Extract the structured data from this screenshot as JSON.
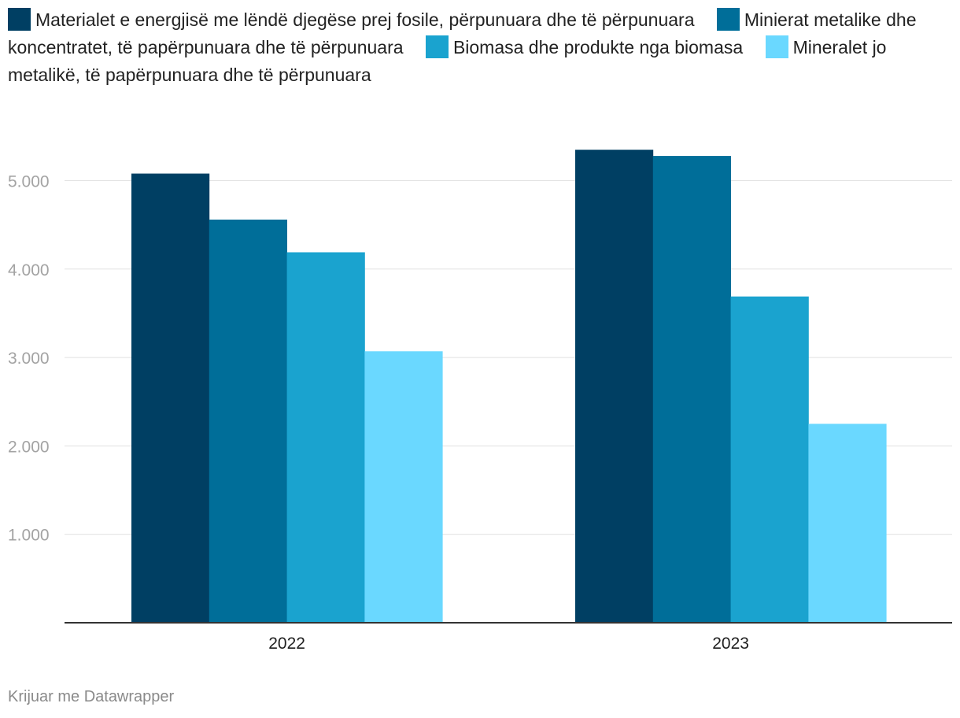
{
  "chart_data": {
    "type": "bar",
    "categories": [
      "2022",
      "2023"
    ],
    "series": [
      {
        "name": "Materialet e energjisë me lëndë djegëse prej fosile, përpunuara dhe të përpunuara",
        "color": "#003f63",
        "values": [
          5080,
          5350
        ]
      },
      {
        "name": "Minierat metalike dhe koncentratet, të papërpunuara dhe të përpunuara",
        "color": "#006e99",
        "values": [
          4560,
          5280
        ]
      },
      {
        "name": "Biomasa dhe produkte nga biomasa",
        "color": "#1aa3cf",
        "values": [
          4190,
          3690
        ]
      },
      {
        "name": "Mineralet jo metalikë, të papërpunuara dhe të përpunuara",
        "color": "#6ad8ff",
        "values": [
          3070,
          2250
        ]
      }
    ],
    "y_ticks": [
      1000,
      2000,
      3000,
      4000,
      5000
    ],
    "y_tick_labels": [
      "1.000",
      "2.000",
      "3.000",
      "4.000",
      "5.000"
    ],
    "ylim": [
      0,
      5500
    ],
    "xlabel": "",
    "ylabel": "",
    "grid": true
  },
  "footer": {
    "credit": "Krijuar me Datawrapper"
  }
}
